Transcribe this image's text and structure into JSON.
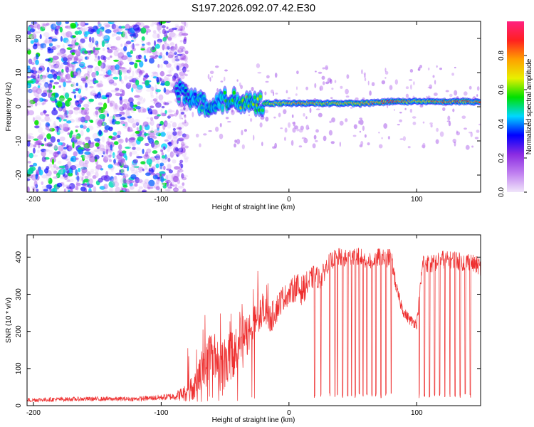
{
  "title": "S197.2026.092.07.42.E30",
  "chart_data": [
    {
      "type": "heatmap",
      "title": "S197.2026.092.07.42.E30",
      "xlabel": "Height of straight line (km)",
      "ylabel": "Frequency (Hz)",
      "xlim": [
        -205,
        150
      ],
      "ylim": [
        -25,
        25
      ],
      "xticks": [
        -200,
        -100,
        0,
        100
      ],
      "yticks": [
        -20,
        -10,
        0,
        10,
        20
      ],
      "colorbar": {
        "label": "Normalized spectral amplitude",
        "range": [
          0.0,
          1.0
        ],
        "ticks": [
          "0.0",
          "0.2",
          "0.4",
          "0.6",
          "0.8"
        ],
        "tick_values": [
          0.0,
          0.2,
          0.4,
          0.6,
          0.8
        ],
        "colors": [
          "#f0e6fa",
          "#c080f0",
          "#8a2be2",
          "#0000ff",
          "#00d8ff",
          "#00e000",
          "#e8f000",
          "#ffa000",
          "#ff2020",
          "#ff2080"
        ]
      },
      "signal_track": {
        "x": [
          -85,
          -75,
          -65,
          -55,
          -45,
          -35,
          -25,
          -15,
          0,
          20,
          40,
          60,
          80,
          100,
          120,
          150
        ],
        "frequency": [
          4,
          2,
          1,
          1.5,
          2,
          2,
          1,
          1,
          1,
          1,
          1,
          1,
          1.5,
          1.5,
          1.5,
          1.5
        ],
        "strength": [
          0.3,
          0.35,
          0.4,
          0.45,
          0.5,
          0.55,
          0.6,
          0.65,
          0.75,
          0.75,
          0.7,
          0.75,
          0.85,
          0.7,
          0.8,
          0.8
        ]
      }
    },
    {
      "type": "line",
      "xlabel": "Height of straight line (km)",
      "ylabel": "SNR (10 * v/v)",
      "xlim": [
        -205,
        150
      ],
      "ylim": [
        0,
        460
      ],
      "xticks": [
        -200,
        -100,
        0,
        100
      ],
      "yticks": [
        0,
        100,
        200,
        300,
        400
      ],
      "color": "#ee3030",
      "series": [
        {
          "name": "SNR",
          "x": [
            -205,
            -180,
            -160,
            -140,
            -120,
            -100,
            -90,
            -80,
            -75,
            -70,
            -65,
            -60,
            -55,
            -50,
            -45,
            -40,
            -35,
            -30,
            -25,
            -20,
            -15,
            -10,
            -5,
            0,
            5,
            10,
            15,
            20,
            25,
            30,
            35,
            40,
            45,
            50,
            55,
            60,
            65,
            70,
            75,
            80,
            85,
            90,
            95,
            100,
            105,
            110,
            115,
            120,
            125,
            130,
            135,
            140,
            145,
            150
          ],
          "y": [
            15,
            17,
            18,
            18,
            18,
            22,
            25,
            35,
            50,
            80,
            120,
            150,
            110,
            120,
            150,
            180,
            170,
            210,
            240,
            250,
            230,
            260,
            290,
            300,
            320,
            310,
            330,
            350,
            340,
            380,
            395,
            400,
            395,
            405,
            400,
            395,
            390,
            400,
            395,
            400,
            300,
            250,
            230,
            220,
            390,
            380,
            385,
            395,
            390,
            395,
            385,
            390,
            380,
            375
          ],
          "noise": [
            6,
            6,
            6,
            6,
            6,
            8,
            10,
            25,
            35,
            50,
            80,
            60,
            70,
            80,
            90,
            80,
            70,
            50,
            40,
            60,
            40,
            40,
            35,
            30,
            40,
            40,
            35,
            30,
            30,
            25,
            25,
            25,
            25,
            25,
            25,
            25,
            25,
            25,
            25,
            25,
            20,
            15,
            15,
            15,
            25,
            25,
            25,
            25,
            25,
            25,
            25,
            25,
            25,
            25
          ],
          "dropouts": [
            20,
            25,
            32,
            36,
            38,
            42,
            46,
            49,
            52,
            55,
            58,
            61,
            65,
            68,
            72,
            76,
            80,
            102,
            106,
            110,
            114,
            118,
            122,
            126,
            130,
            134,
            138,
            142
          ]
        }
      ]
    }
  ]
}
